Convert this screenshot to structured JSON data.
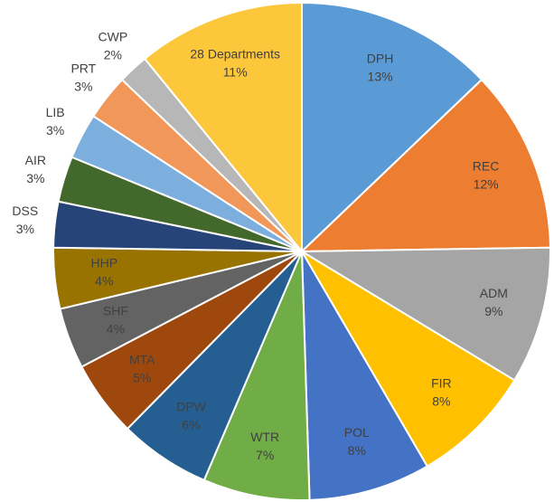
{
  "chart_data": {
    "type": "pie",
    "categories": [
      "DPH",
      "REC",
      "ADM",
      "FIR",
      "POL",
      "WTR",
      "DPW",
      "MTA",
      "SHF",
      "HHP",
      "DSS",
      "AIR",
      "LIB",
      "PRT",
      "CWP",
      "28 Departments"
    ],
    "values": [
      13,
      12,
      9,
      8,
      8,
      7,
      6,
      5,
      4,
      4,
      3,
      3,
      3,
      3,
      2,
      11
    ],
    "value_labels": [
      "13%",
      "12%",
      "9%",
      "8%",
      "8%",
      "7%",
      "6%",
      "5%",
      "4%",
      "4%",
      "3%",
      "3%",
      "3%",
      "3%",
      "2%",
      "11%"
    ],
    "colors": [
      "#5b9bd5",
      "#ed7d31",
      "#a5a5a5",
      "#ffc000",
      "#4472c4",
      "#70ad47",
      "#255e91",
      "#9e480e",
      "#636363",
      "#997300",
      "#264478",
      "#43682b",
      "#7cafdd",
      "#f1975a",
      "#b7b7b7",
      "#fcc73b"
    ]
  }
}
